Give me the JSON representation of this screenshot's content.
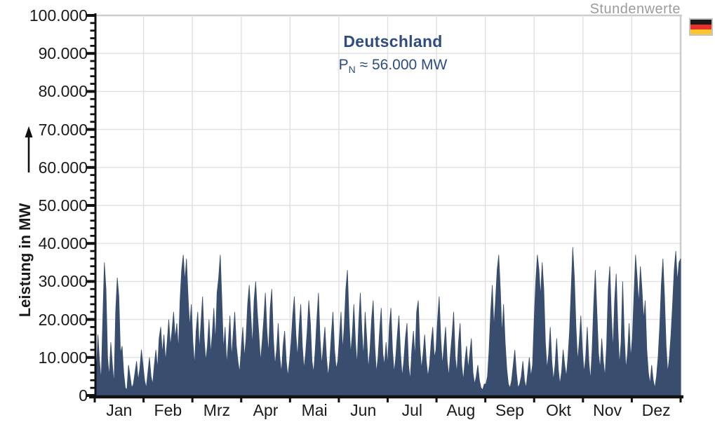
{
  "header": {
    "corner_note": "Stundenwerte",
    "flag": {
      "name": "flag-germany",
      "stripe_colors": [
        "#1a1a1a",
        "#e8312a",
        "#ffc62e"
      ],
      "border_color": "#c4c4c4"
    }
  },
  "annotation": {
    "title": "Deutschland",
    "p_symbol": "P",
    "p_subscript": "N",
    "p_rest": " ≈ 56.000 MW",
    "text_color": "#2e4c82"
  },
  "y_axis": {
    "label": "Leistung in MW",
    "tick_labels": [
      "100.000",
      "90.000",
      "80.000",
      "70.000",
      "60.000",
      "50.000",
      "40.000",
      "30.000",
      "20.000",
      "10.000",
      "0"
    ],
    "min": 0,
    "max": 100000,
    "major_step": 10000,
    "minor_step": 2000
  },
  "chart_data": {
    "type": "area",
    "title": "Deutschland",
    "subtitle": "P_N ≈ 56.000 MW",
    "corner_note": "Stundenwerte",
    "ylabel": "Leistung in MW",
    "unit": "MW",
    "ylim": [
      0,
      100000
    ],
    "grid": true,
    "categories": [
      "Jan",
      "Feb",
      "Mrz",
      "Apr",
      "Mai",
      "Jun",
      "Jul",
      "Aug",
      "Sep",
      "Okt",
      "Nov",
      "Dez"
    ],
    "days_per_month": [
      31,
      28,
      31,
      30,
      31,
      30,
      31,
      31,
      30,
      31,
      30,
      31
    ],
    "sampling": "daily",
    "fill_color": "#394d6e",
    "grid_color": "#e0e0e0",
    "frame_color": "#cccccc",
    "axis_color": "#111111",
    "values": [
      12000,
      6000,
      16000,
      9000,
      4000,
      20000,
      35000,
      28000,
      10000,
      5000,
      14000,
      8000,
      3000,
      22000,
      31000,
      26000,
      11000,
      13000,
      6000,
      2000,
      1500,
      8000,
      5000,
      2000,
      3000,
      6000,
      9000,
      4000,
      7000,
      12000,
      8000,
      4000,
      2000,
      6000,
      10000,
      5000,
      3000,
      8000,
      12000,
      7000,
      15000,
      18000,
      11000,
      16000,
      9000,
      14000,
      20000,
      13000,
      17000,
      22000,
      15000,
      19000,
      12000,
      25000,
      33000,
      37000,
      30000,
      36000,
      26000,
      18000,
      24000,
      14000,
      8000,
      17000,
      22000,
      12000,
      19000,
      26000,
      15000,
      9000,
      13000,
      20000,
      11000,
      16000,
      23000,
      14000,
      27000,
      31000,
      37000,
      25000,
      12000,
      18000,
      8000,
      14000,
      21000,
      10000,
      16000,
      22000,
      13000,
      9000,
      6000,
      12000,
      18000,
      10000,
      15000,
      24000,
      29000,
      21000,
      13000,
      25000,
      30000,
      22000,
      16000,
      9000,
      14000,
      20000,
      27000,
      17000,
      11000,
      23000,
      28000,
      15000,
      8000,
      12000,
      19000,
      10000,
      6000,
      13000,
      17000,
      9000,
      5000,
      9000,
      14000,
      21000,
      26000,
      16000,
      10000,
      18000,
      24000,
      13000,
      7000,
      11000,
      17000,
      25000,
      19000,
      9000,
      6000,
      12000,
      20000,
      27000,
      15000,
      8000,
      13000,
      18000,
      10000,
      5000,
      9000,
      16000,
      22000,
      12000,
      7000,
      9000,
      15000,
      22000,
      12000,
      18000,
      28000,
      33000,
      20000,
      11000,
      16000,
      24000,
      14000,
      8000,
      19000,
      27000,
      17000,
      10000,
      22000,
      15000,
      7000,
      12000,
      20000,
      25000,
      13000,
      6000,
      10000,
      17000,
      23000,
      11000,
      8000,
      14000,
      8000,
      18000,
      23000,
      12000,
      6000,
      10000,
      16000,
      21000,
      11000,
      5000,
      9000,
      15000,
      19000,
      8000,
      4000,
      12000,
      17000,
      10000,
      22000,
      25000,
      13000,
      7000,
      11000,
      16000,
      9000,
      5000,
      8000,
      14000,
      18000,
      10000,
      12000,
      20000,
      26000,
      15000,
      8000,
      13000,
      18000,
      9000,
      5000,
      11000,
      16000,
      22000,
      10000,
      6000,
      14000,
      19000,
      8000,
      4000,
      9000,
      13000,
      7000,
      11000,
      15000,
      6000,
      3000,
      5000,
      8000,
      4000,
      2000,
      1500,
      3000,
      3000,
      5000,
      12000,
      22000,
      29000,
      18000,
      25000,
      33000,
      37000,
      28000,
      16000,
      24000,
      14000,
      7000,
      3000,
      2000,
      4000,
      8000,
      12000,
      6000,
      2000,
      3000,
      5000,
      9000,
      4000,
      2000,
      6000,
      10000,
      5000,
      8000,
      20000,
      30000,
      37000,
      33000,
      26000,
      35000,
      28000,
      14000,
      7000,
      11000,
      18000,
      9000,
      4000,
      8000,
      15000,
      7000,
      3000,
      6000,
      12000,
      8000,
      5000,
      10000,
      17000,
      28000,
      39000,
      31000,
      18000,
      9000,
      14000,
      21000,
      12000,
      6000,
      10000,
      18000,
      9000,
      4000,
      12000,
      24000,
      33000,
      22000,
      11000,
      7000,
      15000,
      9000,
      5000,
      13000,
      28000,
      34000,
      21000,
      12000,
      25000,
      32000,
      18000,
      8000,
      14000,
      30000,
      16000,
      7000,
      11000,
      19000,
      10000,
      15000,
      26000,
      37000,
      31000,
      24000,
      34000,
      28000,
      20000,
      25000,
      12000,
      6000,
      3000,
      8000,
      4000,
      2000,
      5000,
      10000,
      18000,
      29000,
      36000,
      26000,
      13000,
      6000,
      10000,
      16000,
      24000,
      33000,
      38000,
      30000,
      35000,
      36000
    ]
  }
}
